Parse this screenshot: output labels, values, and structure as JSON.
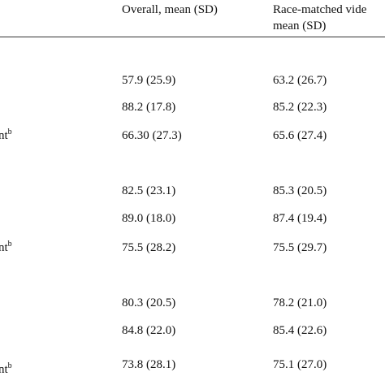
{
  "header": {
    "col1": "Overall, mean (SD)",
    "col2_line1": "Race-matched vide",
    "col2_line2": "mean (SD)"
  },
  "groups": [
    {
      "rows": [
        {
          "overall": "57.9 (25.9)",
          "race_matched": "63.2 (26.7)"
        },
        {
          "overall": "88.2 (17.8)",
          "race_matched": "85.2 (22.3)"
        },
        {
          "label": "nt",
          "label_sup": "b",
          "overall": "66.30 (27.3)",
          "race_matched": "65.6 (27.4)"
        }
      ]
    },
    {
      "rows": [
        {
          "overall": "82.5 (23.1)",
          "race_matched": "85.3 (20.5)"
        },
        {
          "overall": "89.0 (18.0)",
          "race_matched": "87.4 (19.4)"
        },
        {
          "label": "nt",
          "label_sup": "b",
          "overall": "75.5 (28.2)",
          "race_matched": "75.5 (29.7)"
        }
      ]
    },
    {
      "rows": [
        {
          "overall": "80.3 (20.5)",
          "race_matched": "78.2 (21.0)"
        },
        {
          "overall": "84.8 (22.0)",
          "race_matched": "85.4 (22.6)"
        },
        {
          "label": "nt",
          "label_sup": "b",
          "overall": "73.8 (28.1)",
          "race_matched": "75.1 (27.0)"
        }
      ]
    }
  ]
}
